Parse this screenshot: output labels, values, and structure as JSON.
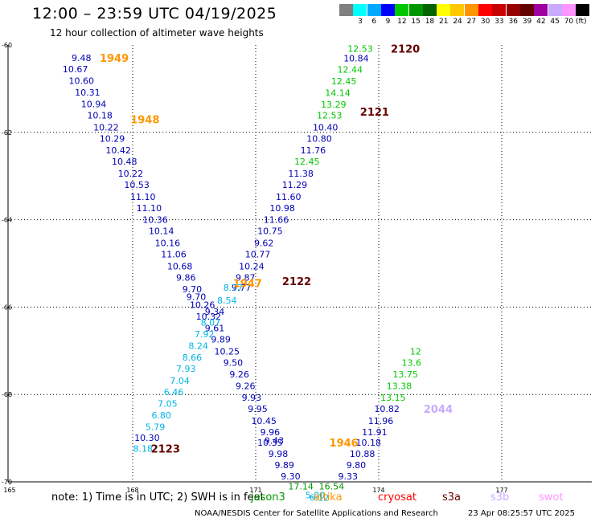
{
  "title": "12:00 – 23:59 UTC 04/19/2025",
  "subtitle": "12 hour collection of altimeter wave heights",
  "legend": {
    "unit": "(ft)",
    "swatches": [
      {
        "color": "#808080",
        "label": ""
      },
      {
        "color": "#00ffff",
        "label": "3"
      },
      {
        "color": "#00aaff",
        "label": "6"
      },
      {
        "color": "#0000ff",
        "label": "9"
      },
      {
        "color": "#00c800",
        "label": "12"
      },
      {
        "color": "#009600",
        "label": "15"
      },
      {
        "color": "#006400",
        "label": "18"
      },
      {
        "color": "#ffff00",
        "label": "21"
      },
      {
        "color": "#ffc800",
        "label": "24"
      },
      {
        "color": "#ff9600",
        "label": "27"
      },
      {
        "color": "#ff0000",
        "label": "30"
      },
      {
        "color": "#c80000",
        "label": "33"
      },
      {
        "color": "#960000",
        "label": "36"
      },
      {
        "color": "#640000",
        "label": "39"
      },
      {
        "color": "#a000a0",
        "label": "42"
      },
      {
        "color": "#c8aaff",
        "label": "45"
      },
      {
        "color": "#ff96ff",
        "label": "70"
      },
      {
        "color": "#000000",
        "label": ""
      }
    ]
  },
  "chart_data": {
    "type": "scatter",
    "xlim": [
      165,
      179
    ],
    "ylim": [
      -70,
      -60
    ],
    "x_ticks": [
      "165",
      "168",
      "171",
      "174",
      "177"
    ],
    "y_ticks": [
      "-60",
      "-62",
      "-64",
      "-66",
      "-68",
      "-70"
    ],
    "grid": true,
    "points": [
      {
        "v": "9.48",
        "lon": 166.75,
        "lat": -60.29,
        "c": "#0000b4"
      },
      {
        "v": "10.67",
        "lon": 166.6,
        "lat": -60.55,
        "c": "#0000b4"
      },
      {
        "v": "10.60",
        "lon": 166.75,
        "lat": -60.82,
        "c": "#0000b4"
      },
      {
        "v": "10.31",
        "lon": 166.9,
        "lat": -61.08,
        "c": "#0000b4"
      },
      {
        "v": "10.94",
        "lon": 167.05,
        "lat": -61.35,
        "c": "#0000b4"
      },
      {
        "v": "10.18",
        "lon": 167.2,
        "lat": -61.61,
        "c": "#0000b4"
      },
      {
        "v": "10.22",
        "lon": 167.35,
        "lat": -61.88,
        "c": "#0000b4"
      },
      {
        "v": "10.29",
        "lon": 167.5,
        "lat": -62.14,
        "c": "#0000b4"
      },
      {
        "v": "10.42",
        "lon": 167.65,
        "lat": -62.41,
        "c": "#0000b4"
      },
      {
        "v": "10.48",
        "lon": 167.8,
        "lat": -62.67,
        "c": "#0000b4"
      },
      {
        "v": "10.22",
        "lon": 167.95,
        "lat": -62.94,
        "c": "#0000b4"
      },
      {
        "v": "10.53",
        "lon": 168.1,
        "lat": -63.2,
        "c": "#0000b4"
      },
      {
        "v": "11.10",
        "lon": 168.25,
        "lat": -63.47,
        "c": "#0000b4"
      },
      {
        "v": "11.10",
        "lon": 168.4,
        "lat": -63.73,
        "c": "#0000b4"
      },
      {
        "v": "10.36",
        "lon": 168.55,
        "lat": -64.0,
        "c": "#0000b4"
      },
      {
        "v": "10.14",
        "lon": 168.7,
        "lat": -64.26,
        "c": "#0000b4"
      },
      {
        "v": "10.16",
        "lon": 168.85,
        "lat": -64.53,
        "c": "#0000b4"
      },
      {
        "v": "11.06",
        "lon": 169.0,
        "lat": -64.79,
        "c": "#0000b4"
      },
      {
        "v": "10.68",
        "lon": 169.15,
        "lat": -65.06,
        "c": "#0000b4"
      },
      {
        "v": "9.86",
        "lon": 169.3,
        "lat": -65.32,
        "c": "#0000b4"
      },
      {
        "v": "9.70",
        "lon": 169.45,
        "lat": -65.59,
        "c": "#0000b4"
      },
      {
        "v": "9.70",
        "lon": 169.55,
        "lat": -65.76,
        "c": "#0000b4"
      },
      {
        "v": "10.26",
        "lon": 169.7,
        "lat": -65.95,
        "c": "#0000b4"
      },
      {
        "v": "10.32",
        "lon": 169.85,
        "lat": -66.21,
        "c": "#0000b4"
      },
      {
        "v": "9.61",
        "lon": 170.0,
        "lat": -66.48,
        "c": "#0000b4"
      },
      {
        "v": "9.89",
        "lon": 170.15,
        "lat": -66.74,
        "c": "#0000b4"
      },
      {
        "v": "10.25",
        "lon": 170.3,
        "lat": -67.01,
        "c": "#0000b4"
      },
      {
        "v": "9.50",
        "lon": 170.45,
        "lat": -67.27,
        "c": "#0000b4"
      },
      {
        "v": "9.26",
        "lon": 170.6,
        "lat": -67.54,
        "c": "#0000b4"
      },
      {
        "v": "9.26",
        "lon": 170.75,
        "lat": -67.8,
        "c": "#0000b4"
      },
      {
        "v": "9.93",
        "lon": 170.9,
        "lat": -68.07,
        "c": "#0000b4"
      },
      {
        "v": "9.95",
        "lon": 171.05,
        "lat": -68.33,
        "c": "#0000b4"
      },
      {
        "v": "10.45",
        "lon": 171.2,
        "lat": -68.6,
        "c": "#0000b4"
      },
      {
        "v": "9.96",
        "lon": 171.35,
        "lat": -68.86,
        "c": "#0000b4"
      },
      {
        "v": "9.43",
        "lon": 171.45,
        "lat": -69.05,
        "c": "#0000b4"
      },
      {
        "v": "10.35",
        "lon": 171.35,
        "lat": -69.1,
        "c": "#0000b4"
      },
      {
        "v": "9.98",
        "lon": 171.55,
        "lat": -69.36,
        "c": "#0000b4"
      },
      {
        "v": "9.89",
        "lon": 171.7,
        "lat": -69.61,
        "c": "#0000b4"
      },
      {
        "v": "9.30",
        "lon": 171.85,
        "lat": -69.87,
        "c": "#0000b4"
      },
      {
        "v": "17.14",
        "lon": 172.1,
        "lat": -70.1,
        "c": "#009600"
      },
      {
        "v": "16.54",
        "lon": 172.85,
        "lat": -70.1,
        "c": "#009600"
      },
      {
        "v": "5.80",
        "lon": 172.45,
        "lat": -70.3,
        "c": "#00b4e6"
      },
      {
        "v": "6.12",
        "lon": 172.55,
        "lat": -70.36,
        "c": "#00b4e6"
      },
      {
        "v": "9.33",
        "lon": 173.25,
        "lat": -69.87,
        "c": "#0000b4"
      },
      {
        "v": "9.80",
        "lon": 173.45,
        "lat": -69.61,
        "c": "#0000b4"
      },
      {
        "v": "10.88",
        "lon": 173.6,
        "lat": -69.36,
        "c": "#0000b4"
      },
      {
        "v": "10.18",
        "lon": 173.75,
        "lat": -69.1,
        "c": "#0000b4"
      },
      {
        "v": "11.91",
        "lon": 173.9,
        "lat": -68.86,
        "c": "#0000b4"
      },
      {
        "v": "11.96",
        "lon": 174.05,
        "lat": -68.6,
        "c": "#0000b4"
      },
      {
        "v": "10.82",
        "lon": 174.2,
        "lat": -68.33,
        "c": "#0000b4"
      },
      {
        "v": "13.15",
        "lon": 174.35,
        "lat": -68.07,
        "c": "#00c800"
      },
      {
        "v": "13.38",
        "lon": 174.5,
        "lat": -67.8,
        "c": "#00c800"
      },
      {
        "v": "13.75",
        "lon": 174.65,
        "lat": -67.54,
        "c": "#00c800"
      },
      {
        "v": "13.6",
        "lon": 174.8,
        "lat": -67.27,
        "c": "#00c800"
      },
      {
        "v": "12",
        "lon": 174.9,
        "lat": -67.01,
        "c": "#00c800"
      },
      {
        "v": "12.53",
        "lon": 173.55,
        "lat": -60.08,
        "c": "#00c800"
      },
      {
        "v": "10.84",
        "lon": 173.45,
        "lat": -60.3,
        "c": "#0000b4"
      },
      {
        "v": "12.44",
        "lon": 173.3,
        "lat": -60.56,
        "c": "#00c800"
      },
      {
        "v": "12.45",
        "lon": 173.15,
        "lat": -60.83,
        "c": "#00c800"
      },
      {
        "v": "14.14",
        "lon": 173.0,
        "lat": -61.09,
        "c": "#00c800"
      },
      {
        "v": "13.29",
        "lon": 172.9,
        "lat": -61.36,
        "c": "#00c800"
      },
      {
        "v": "12.53",
        "lon": 172.8,
        "lat": -61.61,
        "c": "#00c800"
      },
      {
        "v": "10.40",
        "lon": 172.7,
        "lat": -61.88,
        "c": "#0000b4"
      },
      {
        "v": "10.80",
        "lon": 172.55,
        "lat": -62.14,
        "c": "#0000b4"
      },
      {
        "v": "11.76",
        "lon": 172.4,
        "lat": -62.41,
        "c": "#0000b4"
      },
      {
        "v": "12.45",
        "lon": 172.25,
        "lat": -62.67,
        "c": "#00c800"
      },
      {
        "v": "11.38",
        "lon": 172.1,
        "lat": -62.94,
        "c": "#0000b4"
      },
      {
        "v": "11.29",
        "lon": 171.95,
        "lat": -63.2,
        "c": "#0000b4"
      },
      {
        "v": "11.60",
        "lon": 171.8,
        "lat": -63.47,
        "c": "#0000b4"
      },
      {
        "v": "10.98",
        "lon": 171.65,
        "lat": -63.73,
        "c": "#0000b4"
      },
      {
        "v": "11.66",
        "lon": 171.5,
        "lat": -64.0,
        "c": "#0000b4"
      },
      {
        "v": "10.75",
        "lon": 171.35,
        "lat": -64.26,
        "c": "#0000b4"
      },
      {
        "v": "9.62",
        "lon": 171.2,
        "lat": -64.53,
        "c": "#0000b4"
      },
      {
        "v": "10.77",
        "lon": 171.05,
        "lat": -64.79,
        "c": "#0000b4"
      },
      {
        "v": "10.24",
        "lon": 170.9,
        "lat": -65.06,
        "c": "#0000b4"
      },
      {
        "v": "9.87",
        "lon": 170.75,
        "lat": -65.32,
        "c": "#0000b4"
      },
      {
        "v": "9.77",
        "lon": 170.65,
        "lat": -65.55,
        "c": "#0000b4"
      },
      {
        "v": "8.77",
        "lon": 170.45,
        "lat": -65.55,
        "c": "#00b4e6"
      },
      {
        "v": "8.54",
        "lon": 170.3,
        "lat": -65.85,
        "c": "#00b4e6"
      },
      {
        "v": "9.34",
        "lon": 170.0,
        "lat": -66.1,
        "c": "#0000b4"
      },
      {
        "v": "8.07",
        "lon": 169.9,
        "lat": -66.35,
        "c": "#00b4e6"
      },
      {
        "v": "7.92",
        "lon": 169.75,
        "lat": -66.62,
        "c": "#00b4e6"
      },
      {
        "v": "8.24",
        "lon": 169.6,
        "lat": -66.88,
        "c": "#00b4e6"
      },
      {
        "v": "8.66",
        "lon": 169.45,
        "lat": -67.15,
        "c": "#00b4e6"
      },
      {
        "v": "7.93",
        "lon": 169.3,
        "lat": -67.41,
        "c": "#00b4e6"
      },
      {
        "v": "7.04",
        "lon": 169.15,
        "lat": -67.68,
        "c": "#00b4e6"
      },
      {
        "v": "6.46",
        "lon": 169.0,
        "lat": -67.94,
        "c": "#00b4e6"
      },
      {
        "v": "7.05",
        "lon": 168.85,
        "lat": -68.21,
        "c": "#00b4e6"
      },
      {
        "v": "6.80",
        "lon": 168.7,
        "lat": -68.47,
        "c": "#00b4e6"
      },
      {
        "v": "5.79",
        "lon": 168.55,
        "lat": -68.74,
        "c": "#00b4e6"
      },
      {
        "v": "10.30",
        "lon": 168.35,
        "lat": -68.99,
        "c": "#0000b4"
      },
      {
        "v": "8.18",
        "lon": 168.25,
        "lat": -69.24,
        "c": "#00b4e6"
      }
    ],
    "tags": [
      {
        "t": "1949",
        "lon": 167.55,
        "lat": -60.29,
        "c": "#ff9600"
      },
      {
        "t": "1948",
        "lon": 168.3,
        "lat": -61.7,
        "c": "#ff9600"
      },
      {
        "t": "1947",
        "lon": 170.8,
        "lat": -65.45,
        "c": "#ff9600"
      },
      {
        "t": "2122",
        "lon": 172.0,
        "lat": -65.4,
        "c": "#640000"
      },
      {
        "t": "2123",
        "lon": 168.8,
        "lat": -69.24,
        "c": "#640000"
      },
      {
        "t": "1946",
        "lon": 173.15,
        "lat": -69.1,
        "c": "#ff9600"
      },
      {
        "t": "2120",
        "lon": 174.65,
        "lat": -60.08,
        "c": "#640000"
      },
      {
        "t": "2121",
        "lon": 173.9,
        "lat": -61.53,
        "c": "#640000"
      },
      {
        "t": "2044",
        "lon": 175.45,
        "lat": -68.33,
        "c": "#c8aaff"
      }
    ]
  },
  "note": "note:  1) Time is in UTC; 2) SWH is in feet",
  "missions": [
    {
      "name": "jason3",
      "color": "#009600"
    },
    {
      "name": "altika",
      "color": "#ff9600"
    },
    {
      "name": "cryosat",
      "color": "#ff0000"
    },
    {
      "name": "s3a",
      "color": "#640000"
    },
    {
      "name": "s3b",
      "color": "#c8aaff"
    },
    {
      "name": "swot",
      "color": "#ff96ff"
    }
  ],
  "footer": {
    "left": "NOAA/NESDIS Center for Satellite Applications and Research",
    "right": "23 Apr 08:25:57 UTC 2025"
  }
}
